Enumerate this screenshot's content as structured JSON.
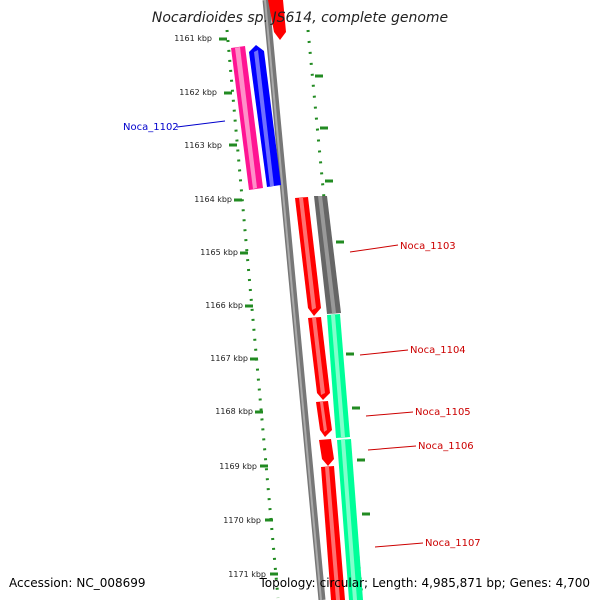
{
  "title": "Nocardioides sp. JS614, complete genome",
  "footer": {
    "accession_label": "Accession:",
    "accession_value": "NC_008699",
    "topology_label": "Topology:",
    "topology_value": "circular;",
    "length_label": "Length:",
    "length_value": "4,985,871 bp;",
    "genes_label": "Genes:",
    "genes_value": "4,700"
  },
  "ticks": [
    "1161 kbp",
    "1162 kbp",
    "1163 kbp",
    "1164 kbp",
    "1165 kbp",
    "1166 kbp",
    "1167 kbp",
    "1168 kbp",
    "1169 kbp",
    "1170 kbp",
    "1171 kbp"
  ],
  "genes": [
    {
      "label": "Noca_1102",
      "color": "#0000cc"
    },
    {
      "label": "Noca_1103",
      "color": "#cc0000"
    },
    {
      "label": "Noca_1104",
      "color": "#cc0000"
    },
    {
      "label": "Noca_1105",
      "color": "#cc0000"
    },
    {
      "label": "Noca_1106",
      "color": "#cc0000"
    },
    {
      "label": "Noca_1107",
      "color": "#cc0000"
    }
  ],
  "colors": {
    "forward": "#ff0000",
    "reverse": "#0000ff",
    "magenta": "#ff1493",
    "gray_feature": "#666666",
    "green_feature": "#00ff99",
    "backbone": "#777777",
    "dots": "#228b22"
  }
}
